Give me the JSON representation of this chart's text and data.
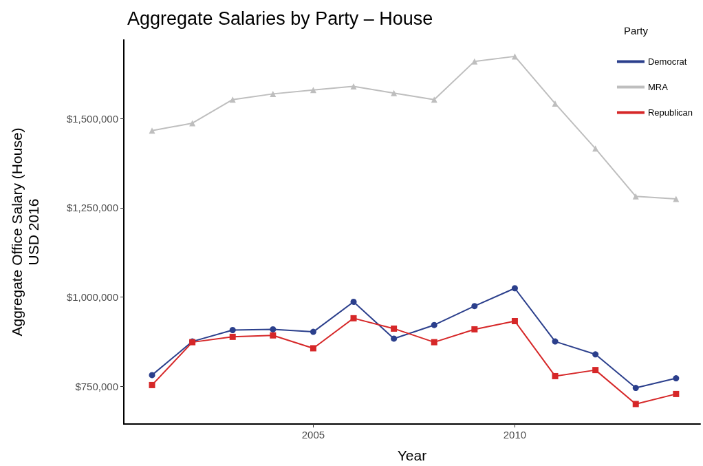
{
  "chart_data": {
    "type": "line",
    "title": "Aggregate Salaries by Party – House",
    "xlabel": "Year",
    "ylabel": "Aggregate Office Salary (House)\nUSD 2016",
    "legend_title": "Party",
    "legend": "top right",
    "grid": false,
    "x": [
      2001,
      2002,
      2003,
      2004,
      2005,
      2006,
      2007,
      2008,
      2009,
      2010,
      2011,
      2012,
      2013,
      2014
    ],
    "xlim": [
      2000.3,
      2014.6
    ],
    "xticks": [
      2005,
      2010
    ],
    "ylim": [
      645000,
      1720000
    ],
    "yticks": [
      {
        "value": 750000,
        "label": "$750,000"
      },
      {
        "value": 1000000,
        "label": "$1,000,000"
      },
      {
        "value": 1250000,
        "label": "$1,250,000"
      },
      {
        "value": 1500000,
        "label": "$1,500,000"
      }
    ],
    "series": [
      {
        "name": "Democrat",
        "color": "#2b3f8c",
        "marker": "circle",
        "values": [
          782000,
          876000,
          908000,
          910000,
          903000,
          987000,
          884000,
          922000,
          975000,
          1025000,
          876000,
          840000,
          746000,
          773000
        ]
      },
      {
        "name": "MRA",
        "color": "#bebebe",
        "marker": "triangle",
        "values": [
          1466000,
          1487000,
          1553000,
          1569000,
          1580000,
          1590000,
          1571000,
          1553000,
          1660000,
          1674000,
          1542000,
          1416000,
          1282000,
          1275000
        ]
      },
      {
        "name": "Republican",
        "color": "#d62728",
        "marker": "square",
        "values": [
          754000,
          874000,
          889000,
          893000,
          857000,
          941000,
          912000,
          874000,
          910000,
          933000,
          779000,
          796000,
          701000,
          729000
        ]
      }
    ]
  }
}
